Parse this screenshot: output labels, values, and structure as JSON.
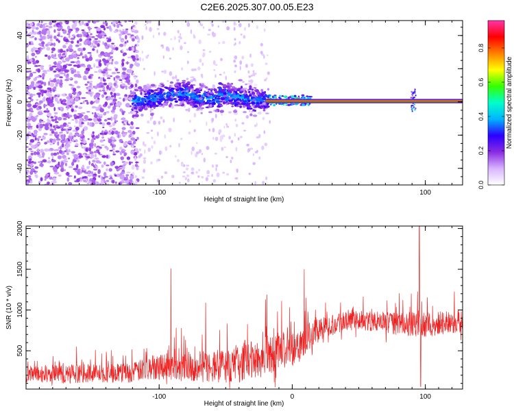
{
  "figure_title": "C2E6.2025.307.00.05.E23",
  "chart_data": [
    {
      "type": "heatmap",
      "title": "C2E6.2025.307.00.05.E23",
      "xlabel": "Height of straight line (km)",
      "ylabel": "Frequency (Hz)",
      "xlim": [
        -200,
        128
      ],
      "ylim": [
        -50,
        49
      ],
      "x_ticks": [
        {
          "value": -100,
          "label": "-100"
        },
        {
          "value": 100,
          "label": "100"
        }
      ],
      "x_minor_step": 10,
      "y_ticks": [
        {
          "value": -40,
          "label": "-40"
        },
        {
          "value": -20,
          "label": "-20"
        },
        {
          "value": 0,
          "label": "0"
        },
        {
          "value": 20,
          "label": "20"
        },
        {
          "value": 40,
          "label": "40"
        }
      ],
      "y_minor_step": 5,
      "colorbar": {
        "label": "Normalized spectral amplitude",
        "range": [
          0,
          0.96
        ],
        "ticks": [
          {
            "value": 0,
            "label": "0.0"
          },
          {
            "value": 0.2,
            "label": "0.2"
          },
          {
            "value": 0.4,
            "label": "0.4"
          },
          {
            "value": 0.6,
            "label": "0.6"
          },
          {
            "value": 0.8,
            "label": "0.8"
          }
        ],
        "colors": [
          "#ffffff",
          "#d8b4ff",
          "#8a2be2",
          "#2b00ff",
          "#00b4ff",
          "#00ffcc",
          "#33ff00",
          "#ffff00",
          "#ff8000",
          "#ff0000",
          "#ff33aa"
        ]
      },
      "features": {
        "noise_region_km": [
          -200,
          -120
        ],
        "sparse_region_km": [
          -120,
          -15
        ],
        "band_region_km": [
          -120,
          -18
        ],
        "band_center_hz": 3,
        "carrier_start_km": -20,
        "carrier_freq_hz": 0.5,
        "spike_km": 91
      }
    },
    {
      "type": "line",
      "xlabel": "Height of straight line (km)",
      "ylabel": "SNR (10 * v/v)",
      "xlim": [
        -200,
        128
      ],
      "ylim": [
        30,
        2030
      ],
      "x_ticks": [
        {
          "value": -100,
          "label": "-100"
        },
        {
          "value": 0,
          "label": "0"
        },
        {
          "value": 100,
          "label": "100"
        }
      ],
      "x_minor_step": 10,
      "y_ticks": [
        {
          "value": 500,
          "label": "500"
        },
        {
          "value": 1000,
          "label": "1000"
        },
        {
          "value": 1500,
          "label": "1500"
        },
        {
          "value": 2000,
          "label": "2000"
        }
      ],
      "y_minor_step": 100,
      "series": [
        {
          "name": "SNR",
          "color": "#ee2222",
          "baseline_x": [
            -200,
            -120,
            -100,
            -60,
            -40,
            -20,
            0,
            20,
            40,
            60,
            80,
            100,
            128
          ],
          "baseline_y": [
            210,
            230,
            320,
            300,
            330,
            430,
            530,
            760,
            880,
            860,
            830,
            820,
            860
          ],
          "spread_x": [
            -200,
            -120,
            -100,
            -60,
            -40,
            -20,
            0,
            20,
            40,
            60,
            80,
            100,
            128
          ],
          "spread_y": [
            110,
            120,
            170,
            200,
            220,
            260,
            220,
            140,
            130,
            120,
            140,
            160,
            140
          ],
          "spikes": [
            {
              "x": -91,
              "y": 1510
            },
            {
              "x": -65,
              "y": 1090
            },
            {
              "x": -19,
              "y": 1190
            },
            {
              "x": 9,
              "y": 1500
            },
            {
              "x": 95.5,
              "y": 2030
            },
            {
              "x": 96.5,
              "y": 60
            }
          ]
        }
      ]
    }
  ]
}
